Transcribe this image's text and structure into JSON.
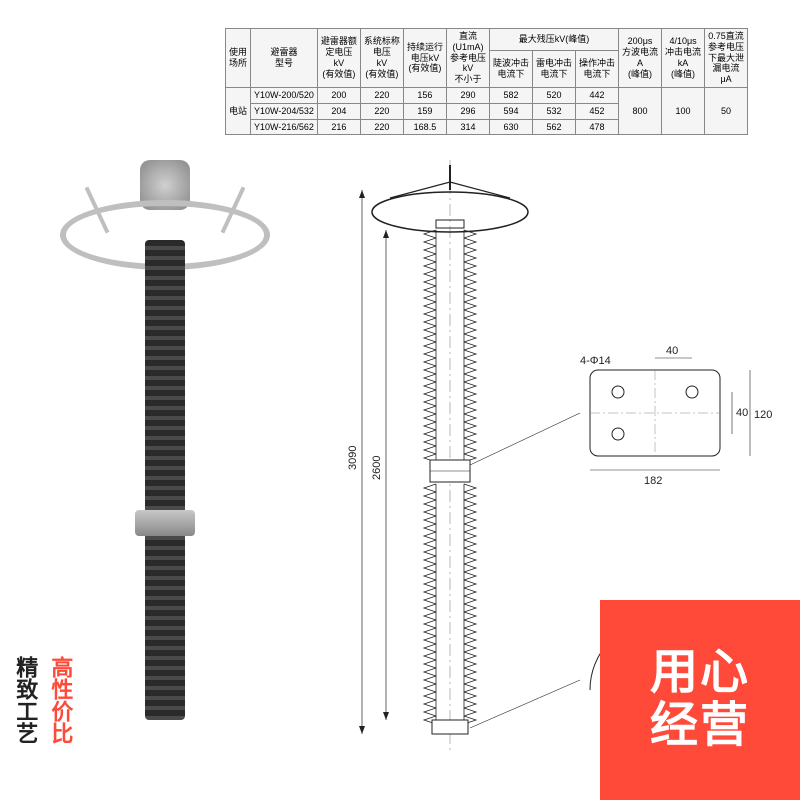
{
  "table": {
    "headers": {
      "usage": "使用\n场所",
      "model": "避雷器\n型号",
      "rated": "避雷器额\n定电压\nkV\n(有效值)",
      "system": "系统标称\n电压\nkV\n(有效值)",
      "continuous": "持续运行\n电压kV\n(有效值)",
      "dc": "直流\n(U1mA)\n参考电压\nkV\n不小于",
      "max_group": "最大残压kV(峰值)",
      "steep": "陡波冲击\n电流下",
      "lightning": "雷电冲击\n电流下",
      "switch": "操作冲击\n电流下",
      "t200": "200μs\n方波电流\nA\n(峰值)",
      "t4_10": "4/10μs\n冲击电流\nkA\n(峰值)",
      "leak": "0.75直流\n参考电压\n下最大泄\n漏电流\nμA"
    },
    "usage_cell": "电站",
    "rows": [
      {
        "model": "Y10W-200/520",
        "rated": "200",
        "system": "220",
        "continuous": "156",
        "dc": "290",
        "steep": "582",
        "lightning": "520",
        "switch": "442"
      },
      {
        "model": "Y10W-204/532",
        "rated": "204",
        "system": "220",
        "continuous": "159",
        "dc": "296",
        "steep": "594",
        "lightning": "532",
        "switch": "452"
      },
      {
        "model": "Y10W-216/562",
        "rated": "216",
        "system": "220",
        "continuous": "168.5",
        "dc": "314",
        "steep": "630",
        "lightning": "562",
        "switch": "478"
      }
    ],
    "shared": {
      "t200": "800",
      "t4_10": "100",
      "leak": "50"
    }
  },
  "drawing": {
    "overall_h": "3090",
    "insulator_h": "2600",
    "flange_hole": "4-Φ14",
    "flange_hole2": "4-Φ14",
    "flange_a": "40",
    "flange_b": "40",
    "flange_w": "182",
    "flange_h": "120"
  },
  "banner": {
    "line1": "用心",
    "line2": "经营"
  },
  "side": {
    "l1": "高性价比",
    "l2": "精致工艺"
  },
  "colors": {
    "banner": "#ff4a3a",
    "text": "#222222",
    "table_border": "#888888",
    "table_bg": "#f5f5f5",
    "metal": "#bfbfbf",
    "insulator": "#2a2a2a"
  }
}
